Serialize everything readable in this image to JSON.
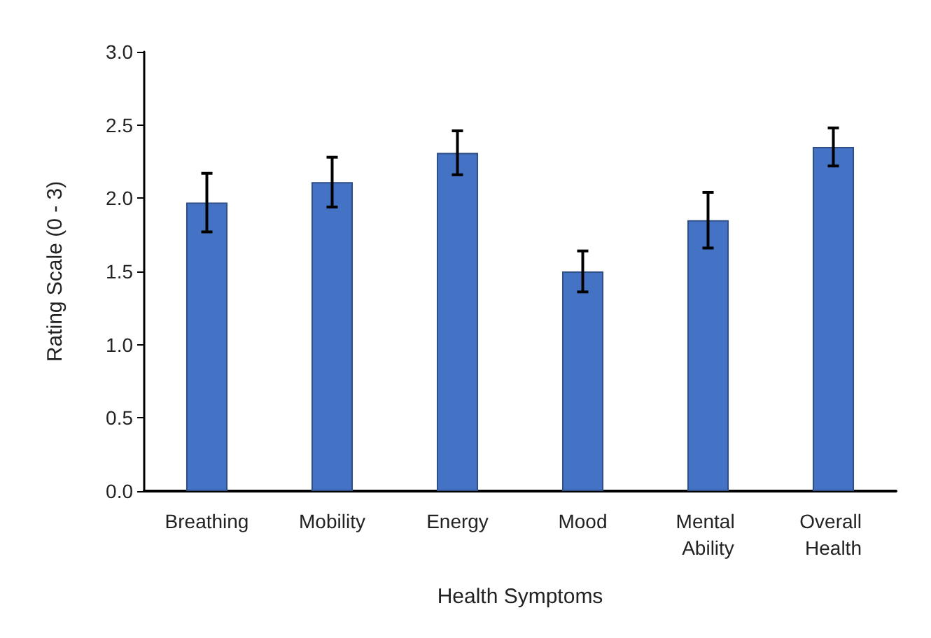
{
  "chart_data": {
    "type": "bar",
    "xlabel": "Health Symptoms",
    "ylabel": "Rating Scale (0 - 3)",
    "categories": [
      "Breathing",
      "Mobility",
      "Energy",
      "Mood",
      "Mental Ability",
      "Overall Health"
    ],
    "values": [
      1.97,
      2.11,
      2.31,
      1.5,
      1.85,
      2.35
    ],
    "errors": [
      0.2,
      0.17,
      0.15,
      0.14,
      0.19,
      0.13
    ],
    "color": "#4472c4",
    "ylim": [
      0,
      3
    ],
    "yticks": [
      {
        "value": 0,
        "label": "0.0"
      },
      0.5,
      {
        "value": 1,
        "label": "1.0"
      },
      1.5,
      {
        "value": 2,
        "label": "2.0"
      },
      2.5,
      {
        "value": 3,
        "label": "3.0"
      }
    ]
  }
}
